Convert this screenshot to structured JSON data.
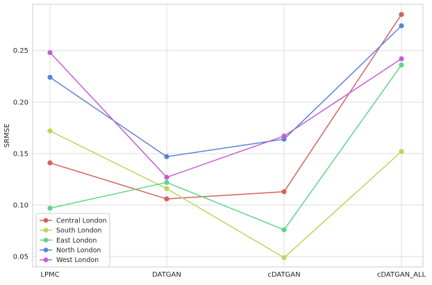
{
  "chart_data": {
    "type": "line",
    "title": "",
    "xlabel": "",
    "ylabel": "SRMSE",
    "categories": [
      "LPMC",
      "DATGAN",
      "cDATGAN",
      "cDATGAN_ALL"
    ],
    "ylim": [
      0.04,
      0.295
    ],
    "yticks": [
      0.05,
      0.1,
      0.15,
      0.2,
      0.25
    ],
    "ytick_labels": [
      "0.05",
      "0.10",
      "0.15",
      "0.20",
      "0.25"
    ],
    "grid": true,
    "legend_position": "lower-left",
    "series": [
      {
        "name": "Central London",
        "color": "#d65f5f",
        "values": [
          0.141,
          0.106,
          0.113,
          0.285
        ]
      },
      {
        "name": "South London",
        "color": "#b8d95a",
        "values": [
          0.172,
          0.116,
          0.049,
          0.152
        ]
      },
      {
        "name": "East London",
        "color": "#5bd68a",
        "values": [
          0.097,
          0.122,
          0.076,
          0.236
        ]
      },
      {
        "name": "North London",
        "color": "#5a82d6",
        "values": [
          0.224,
          0.147,
          0.164,
          0.274
        ]
      },
      {
        "name": "West London",
        "color": "#c25ed6",
        "values": [
          0.248,
          0.127,
          0.167,
          0.242
        ]
      }
    ]
  }
}
